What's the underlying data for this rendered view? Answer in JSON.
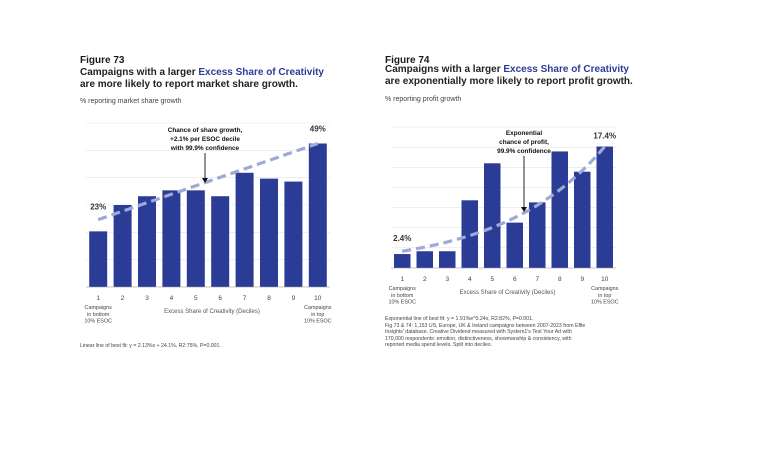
{
  "figures": [
    {
      "label": "Figure 73",
      "title_pre": "Campaigns with a larger ",
      "title_highlight": "Excess Share of Creativity",
      "title_line2": "are more likely to report market share growth.",
      "subtitle": "% reporting market share growth",
      "notes": [
        "Linear line of best fit: y = 2.13%x + 24.1%, R2:75%, P=0.001."
      ]
    },
    {
      "label": "Figure 74",
      "title_pre": "Campaigns with a larger ",
      "title_highlight": "Excess Share of Creativity",
      "title_line2": "are exponentially more likely to report profit growth.",
      "subtitle": "% reporting profit growth",
      "notes": [
        "Exponential line of best fit: y = 1.91%e^0.24x, R2:82%, P=0.001.",
        "Fig 73 & 74: 1,153 US, Europe, UK & Ireland campaigns between 2007-2023 from Effie",
        "Insights' database. Creative Dividend measured with System1's Test Your Ad with",
        "170,000 respondents: emotion, distinctiveness, showmanship & consistency, with",
        "reported media spend levels. Split into deciles."
      ]
    }
  ],
  "chart_data": [
    {
      "type": "bar",
      "categories": [
        "1",
        "2",
        "3",
        "4",
        "5",
        "6",
        "7",
        "8",
        "9",
        "10"
      ],
      "values": [
        19,
        28,
        31,
        33,
        33,
        31,
        39,
        37,
        36,
        49
      ],
      "ylim": [
        0,
        56
      ],
      "xlabel": "Excess Share of Creativity (Deciles)",
      "ylabel": "% reporting market share growth",
      "trendline": {
        "type": "linear",
        "start": 23,
        "end": 49
      },
      "data_labels": [
        {
          "index": 0,
          "text": "23%"
        },
        {
          "index": 9,
          "text": "49%"
        }
      ],
      "annotation": [
        "Chance of share growth,",
        "+2.1% per ESOC decile",
        "with 99.9% confidence"
      ],
      "annotation_index": 5,
      "end_labels": {
        "left": [
          "Campaigns",
          "in bottom",
          "10% ESOC"
        ],
        "right": [
          "Campaigns",
          "in top",
          "10% ESOC"
        ]
      },
      "colors": {
        "bar": "#2b3c97",
        "trend": "#9fa8d6",
        "grid": "#e3e3e3"
      }
    },
    {
      "type": "bar",
      "categories": [
        "1",
        "2",
        "3",
        "4",
        "5",
        "6",
        "7",
        "8",
        "9",
        "10"
      ],
      "values": [
        2.0,
        2.4,
        2.4,
        9.7,
        15.0,
        6.5,
        9.4,
        16.7,
        13.8,
        17.4
      ],
      "ylim": [
        0,
        20.2
      ],
      "xlabel": "Excess Share of Creativity (Deciles)",
      "ylabel": "% reporting profit growth",
      "trendline": {
        "type": "exponential",
        "start": 2.4,
        "end": 17.4
      },
      "data_labels": [
        {
          "index": 0,
          "text": "2.4%"
        },
        {
          "index": 9,
          "text": "17.4%"
        }
      ],
      "annotation": [
        "Exponential",
        "chance of profit,",
        "99.9% confidence"
      ],
      "annotation_index": 5,
      "end_labels": {
        "left": [
          "Campaigns",
          "in bottom",
          "10% ESOC"
        ],
        "right": [
          "Campaigns",
          "in top",
          "10% ESOC"
        ]
      },
      "colors": {
        "bar": "#2b3c97",
        "trend": "#9fa8d6",
        "grid": "#e3e3e3"
      }
    }
  ]
}
